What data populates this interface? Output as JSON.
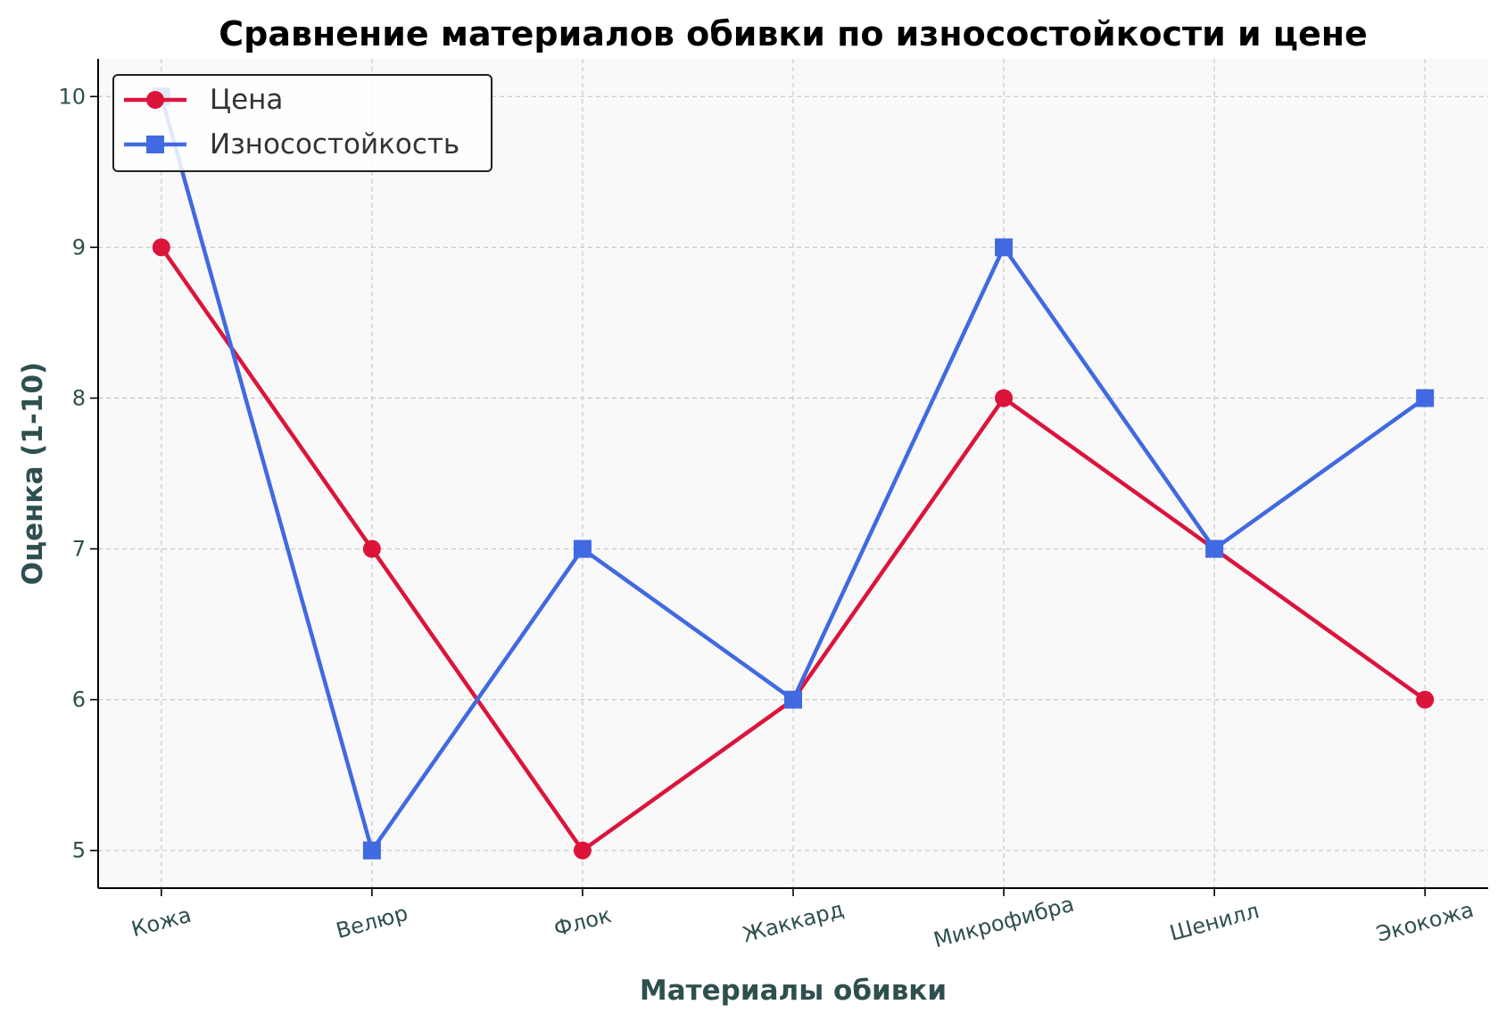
{
  "chart_data": {
    "type": "line",
    "title": "Сравнение материалов обивки по износостойкости и цене",
    "xlabel": "Материалы обивки",
    "ylabel": "Оценка (1-10)",
    "categories": [
      "Кожа",
      "Велюр",
      "Флок",
      "Жаккард",
      "Микрофибра",
      "Шенилл",
      "Экокожа"
    ],
    "ylim": [
      4.75,
      10.25
    ],
    "yticks": [
      5,
      6,
      7,
      8,
      9,
      10
    ],
    "grid": true,
    "legend": "top-left",
    "series": [
      {
        "name": "Цена",
        "values": [
          9,
          7,
          5,
          6,
          8,
          7,
          6
        ],
        "color": "#dc143c",
        "marker": "circle"
      },
      {
        "name": "Износостойкость",
        "values": [
          10,
          5,
          7,
          6,
          9,
          7,
          8
        ],
        "color": "#4169e1",
        "marker": "square"
      }
    ],
    "colors": {
      "plot_background": "#f9f9f9",
      "grid": "#cccccc",
      "axis_text": "#2f4f4f",
      "title": "#000000"
    }
  }
}
